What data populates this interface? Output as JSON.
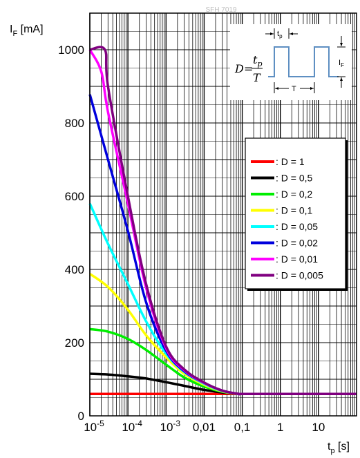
{
  "chart_data": {
    "type": "line",
    "title": "SFH 7019",
    "ylabel_main": "I",
    "ylabel_sub": "F",
    "ylabel_unit": " [mA]",
    "xlabel_main": "t",
    "xlabel_sub": "p",
    "xlabel_unit": " [s]",
    "x_scale": "log",
    "xlim": [
      1e-05,
      100
    ],
    "ylim": [
      0,
      1100
    ],
    "grid": true,
    "legend_position": "right",
    "x_ticks": [
      {
        "value": 1e-05,
        "base": "10",
        "exp": "-5"
      },
      {
        "value": 0.0001,
        "base": "10",
        "exp": "-4"
      },
      {
        "value": 0.001,
        "base": "10",
        "exp": "-3"
      },
      {
        "value": 0.01,
        "label": "0,01"
      },
      {
        "value": 0.1,
        "label": "0,1"
      },
      {
        "value": 1,
        "label": "1"
      },
      {
        "value": 10,
        "label": "10"
      }
    ],
    "y_ticks": [
      0,
      200,
      400,
      600,
      800,
      1000
    ],
    "inset": {
      "formula_lhs": "D",
      "formula_num": "t",
      "formula_num_sub": "p",
      "formula_den": "T",
      "tp_label": "t",
      "tp_label_sub": "p",
      "T_label": "T",
      "IF_label": "I",
      "IF_label_sub": "F"
    },
    "series": [
      {
        "name": ": D = 1",
        "color": "#ff0000",
        "x": [
          1e-05,
          0.0001,
          0.001,
          0.01,
          0.1,
          1,
          10,
          100
        ],
        "y": [
          60,
          60,
          60,
          60,
          60,
          60,
          60,
          60
        ]
      },
      {
        "name": ": D = 0,5",
        "color": "#000000",
        "x": [
          1e-05,
          3e-05,
          0.0001,
          0.0003,
          0.001,
          0.003,
          0.01,
          0.03,
          0.08,
          0.1,
          1,
          100
        ],
        "y": [
          115,
          113,
          108,
          102,
          92,
          82,
          71,
          64,
          60,
          60,
          60,
          60
        ]
      },
      {
        "name": ": D = 0,2",
        "color": "#00ee00",
        "x": [
          1e-05,
          3e-05,
          0.0001,
          0.0003,
          0.001,
          0.003,
          0.01,
          0.03,
          0.08,
          0.1,
          1,
          100
        ],
        "y": [
          237,
          230,
          210,
          180,
          140,
          105,
          80,
          66,
          60,
          60,
          60,
          60
        ]
      },
      {
        "name": ": D = 0,1",
        "color": "#ffff00",
        "x": [
          1e-05,
          3e-05,
          0.0001,
          0.0003,
          0.001,
          0.003,
          0.01,
          0.03,
          0.08,
          0.1,
          1,
          100
        ],
        "y": [
          388,
          352,
          290,
          220,
          160,
          115,
          85,
          67,
          60,
          60,
          60,
          60
        ]
      },
      {
        "name": ": D = 0,05",
        "color": "#00ffff",
        "x": [
          1e-05,
          3e-05,
          0.0001,
          0.0003,
          0.001,
          0.003,
          0.01,
          0.03,
          0.08,
          0.1,
          1,
          100
        ],
        "y": [
          580,
          470,
          360,
          258,
          170,
          120,
          88,
          68,
          60,
          60,
          60,
          60
        ]
      },
      {
        "name": ": D = 0,02",
        "color": "#0000dd",
        "x": [
          1e-05,
          3e-05,
          0.0001,
          0.0003,
          0.001,
          0.003,
          0.01,
          0.03,
          0.08,
          0.1,
          1,
          100
        ],
        "y": [
          878,
          700,
          505,
          310,
          178,
          122,
          90,
          69,
          60,
          60,
          60,
          60
        ]
      },
      {
        "name": ": D = 0,01",
        "color": "#ff00ff",
        "x": [
          1e-05,
          2e-05,
          3e-05,
          0.0001,
          0.0003,
          0.001,
          0.003,
          0.01,
          0.03,
          0.08,
          0.1,
          1,
          100
        ],
        "y": [
          1000,
          940,
          830,
          580,
          350,
          185,
          125,
          90,
          69,
          60,
          60,
          60,
          60
        ]
      },
      {
        "name": ": D = 0,005",
        "color": "#800080",
        "x": [
          1e-05,
          2.5e-05,
          3e-05,
          0.0001,
          0.0003,
          0.001,
          0.003,
          0.01,
          0.03,
          0.08,
          0.1,
          1,
          100
        ],
        "y": [
          1000,
          1000,
          900,
          600,
          360,
          190,
          127,
          91,
          69,
          60,
          60,
          60,
          60
        ]
      }
    ]
  }
}
